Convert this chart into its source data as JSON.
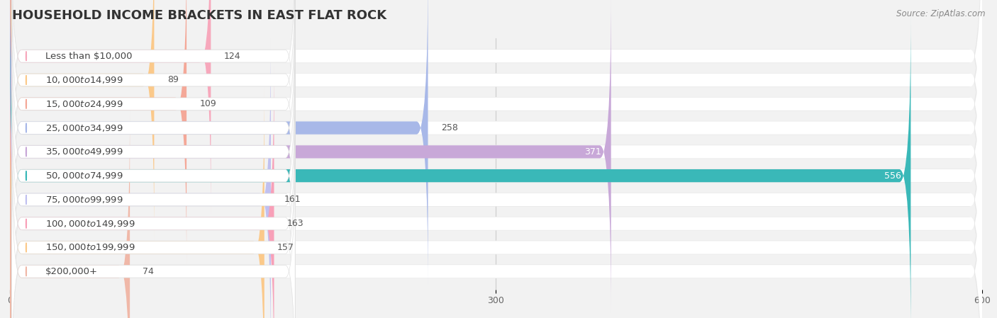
{
  "title": "HOUSEHOLD INCOME BRACKETS IN EAST FLAT ROCK",
  "source": "Source: ZipAtlas.com",
  "categories": [
    "Less than $10,000",
    "$10,000 to $14,999",
    "$15,000 to $24,999",
    "$25,000 to $34,999",
    "$35,000 to $49,999",
    "$50,000 to $74,999",
    "$75,000 to $99,999",
    "$100,000 to $149,999",
    "$150,000 to $199,999",
    "$200,000+"
  ],
  "values": [
    124,
    89,
    109,
    258,
    371,
    556,
    161,
    163,
    157,
    74
  ],
  "bar_colors": [
    "#f7a8bc",
    "#fbc98a",
    "#f4a898",
    "#a8b8e8",
    "#c8a8d8",
    "#3ab8b8",
    "#c0c0f0",
    "#f8a0b8",
    "#fbc98a",
    "#f0b8a8"
  ],
  "xlim": [
    0,
    600
  ],
  "xticks": [
    0,
    300,
    600
  ],
  "bar_height": 0.58,
  "background_color": "#f2f2f2",
  "bar_bg_color": "#ffffff",
  "title_fontsize": 13,
  "label_fontsize": 9.5,
  "value_fontsize": 9,
  "tick_fontsize": 9,
  "value_threshold_inside": 340
}
